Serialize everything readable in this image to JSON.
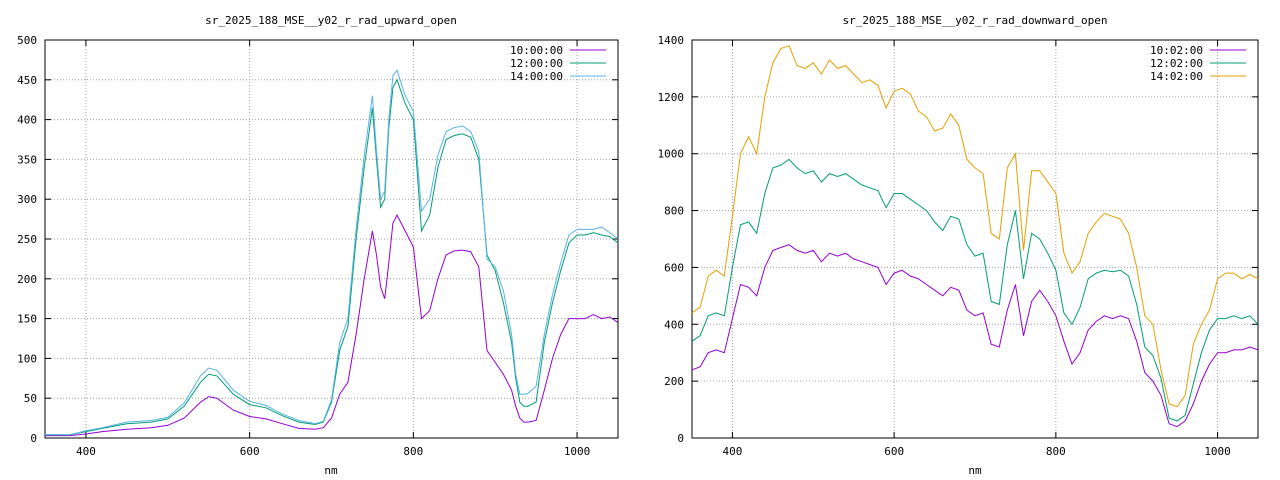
{
  "chart_data": [
    {
      "type": "line",
      "title": "sr_2025_188_MSE__y02_r_rad_upward_open",
      "xlabel": "nm",
      "ylabel": "",
      "xlim": [
        350,
        1050
      ],
      "ylim": [
        0,
        500
      ],
      "xticks": [
        400,
        600,
        800,
        1000
      ],
      "yticks": [
        0,
        50,
        100,
        150,
        200,
        250,
        300,
        350,
        400,
        450,
        500
      ],
      "grid": true,
      "legend_position": "top-right",
      "series": [
        {
          "name": "10:00:00",
          "color": "#9400d3",
          "x": [
            350,
            380,
            400,
            420,
            450,
            480,
            500,
            520,
            540,
            550,
            560,
            580,
            600,
            620,
            640,
            660,
            680,
            690,
            700,
            710,
            720,
            730,
            740,
            750,
            755,
            760,
            765,
            770,
            775,
            780,
            790,
            800,
            810,
            820,
            830,
            840,
            850,
            860,
            870,
            880,
            890,
            900,
            910,
            920,
            925,
            930,
            935,
            940,
            950,
            960,
            970,
            980,
            990,
            1000,
            1010,
            1020,
            1030,
            1040,
            1050
          ],
          "values": [
            3,
            3,
            5,
            8,
            11,
            13,
            16,
            25,
            45,
            52,
            50,
            35,
            27,
            24,
            18,
            12,
            11,
            13,
            25,
            55,
            70,
            130,
            200,
            260,
            230,
            190,
            175,
            220,
            270,
            280,
            260,
            240,
            150,
            160,
            200,
            230,
            235,
            236,
            234,
            215,
            110,
            95,
            80,
            60,
            40,
            25,
            20,
            20,
            22,
            60,
            100,
            130,
            150,
            150,
            150,
            155,
            150,
            152,
            145
          ]
        },
        {
          "name": "12:00:00",
          "color": "#009e73",
          "x": [
            350,
            380,
            400,
            420,
            450,
            480,
            500,
            520,
            540,
            550,
            560,
            580,
            600,
            620,
            640,
            660,
            680,
            690,
            700,
            710,
            720,
            730,
            740,
            750,
            755,
            760,
            765,
            770,
            775,
            780,
            790,
            800,
            810,
            820,
            830,
            840,
            850,
            860,
            870,
            880,
            890,
            900,
            910,
            920,
            925,
            930,
            935,
            940,
            950,
            960,
            970,
            980,
            990,
            1000,
            1010,
            1020,
            1030,
            1040,
            1050
          ],
          "values": [
            4,
            4,
            8,
            12,
            18,
            20,
            24,
            40,
            70,
            80,
            78,
            55,
            42,
            38,
            28,
            20,
            17,
            20,
            45,
            110,
            140,
            250,
            340,
            415,
            350,
            290,
            300,
            390,
            440,
            450,
            420,
            400,
            260,
            280,
            340,
            375,
            380,
            382,
            378,
            350,
            230,
            210,
            170,
            120,
            75,
            45,
            40,
            40,
            45,
            120,
            170,
            210,
            245,
            255,
            255,
            258,
            255,
            253,
            245
          ]
        },
        {
          "name": "14:00:00",
          "color": "#56b4e9",
          "x": [
            350,
            380,
            400,
            420,
            450,
            480,
            500,
            520,
            540,
            550,
            560,
            580,
            600,
            620,
            640,
            660,
            680,
            690,
            700,
            710,
            720,
            730,
            740,
            750,
            755,
            760,
            765,
            770,
            775,
            780,
            790,
            800,
            810,
            820,
            830,
            840,
            850,
            860,
            870,
            880,
            890,
            900,
            910,
            920,
            925,
            930,
            935,
            940,
            950,
            960,
            970,
            980,
            990,
            1000,
            1010,
            1020,
            1030,
            1040,
            1050
          ],
          "values": [
            4,
            4,
            9,
            13,
            20,
            22,
            26,
            44,
            78,
            88,
            85,
            60,
            46,
            41,
            30,
            22,
            18,
            21,
            48,
            120,
            150,
            262,
            355,
            430,
            360,
            300,
            310,
            400,
            455,
            462,
            430,
            410,
            285,
            300,
            355,
            385,
            390,
            392,
            385,
            360,
            225,
            215,
            185,
            130,
            80,
            55,
            55,
            56,
            65,
            130,
            180,
            220,
            255,
            262,
            262,
            262,
            265,
            258,
            250
          ]
        }
      ]
    },
    {
      "type": "line",
      "title": "sr_2025_188_MSE__y02_r_rad_downward_open",
      "xlabel": "nm",
      "ylabel": "",
      "xlim": [
        350,
        1050
      ],
      "ylim": [
        0,
        1400
      ],
      "xticks": [
        400,
        600,
        800,
        1000
      ],
      "yticks": [
        0,
        200,
        400,
        600,
        800,
        1000,
        1200,
        1400
      ],
      "grid": true,
      "legend_position": "top-right",
      "series": [
        {
          "name": "10:02:00",
          "color": "#9400d3",
          "x": [
            350,
            360,
            370,
            380,
            390,
            400,
            410,
            420,
            430,
            440,
            450,
            460,
            470,
            480,
            490,
            500,
            510,
            520,
            530,
            540,
            550,
            560,
            570,
            580,
            590,
            600,
            610,
            620,
            630,
            640,
            650,
            660,
            670,
            680,
            690,
            700,
            710,
            720,
            730,
            740,
            750,
            760,
            770,
            780,
            790,
            800,
            810,
            820,
            830,
            840,
            850,
            860,
            870,
            880,
            890,
            900,
            910,
            920,
            930,
            940,
            950,
            960,
            970,
            980,
            990,
            1000,
            1010,
            1020,
            1030,
            1040,
            1050
          ],
          "values": [
            240,
            250,
            300,
            310,
            300,
            420,
            540,
            530,
            500,
            600,
            660,
            670,
            680,
            660,
            650,
            660,
            620,
            650,
            640,
            650,
            630,
            620,
            610,
            600,
            540,
            580,
            590,
            570,
            560,
            540,
            520,
            500,
            530,
            520,
            450,
            430,
            440,
            330,
            320,
            450,
            540,
            360,
            480,
            520,
            480,
            430,
            340,
            260,
            300,
            380,
            410,
            430,
            420,
            430,
            420,
            340,
            230,
            200,
            150,
            50,
            40,
            60,
            120,
            200,
            260,
            300,
            300,
            310,
            310,
            320,
            310
          ]
        },
        {
          "name": "12:02:00",
          "color": "#009e73",
          "x": [
            350,
            360,
            370,
            380,
            390,
            400,
            410,
            420,
            430,
            440,
            450,
            460,
            470,
            480,
            490,
            500,
            510,
            520,
            530,
            540,
            550,
            560,
            570,
            580,
            590,
            600,
            610,
            620,
            630,
            640,
            650,
            660,
            670,
            680,
            690,
            700,
            710,
            720,
            730,
            740,
            750,
            760,
            770,
            780,
            790,
            800,
            810,
            820,
            830,
            840,
            850,
            860,
            870,
            880,
            890,
            900,
            910,
            920,
            930,
            940,
            950,
            960,
            970,
            980,
            990,
            1000,
            1010,
            1020,
            1030,
            1040,
            1050
          ],
          "values": [
            340,
            360,
            430,
            440,
            430,
            600,
            750,
            760,
            720,
            860,
            950,
            960,
            980,
            950,
            930,
            940,
            900,
            930,
            920,
            930,
            910,
            890,
            880,
            870,
            810,
            860,
            860,
            840,
            820,
            800,
            760,
            730,
            780,
            770,
            680,
            640,
            650,
            480,
            470,
            680,
            800,
            560,
            720,
            700,
            650,
            590,
            440,
            400,
            460,
            560,
            580,
            590,
            585,
            590,
            570,
            470,
            320,
            290,
            210,
            70,
            60,
            80,
            190,
            300,
            380,
            420,
            420,
            430,
            420,
            430,
            400
          ]
        },
        {
          "name": "14:02:00",
          "color": "#e69f00",
          "x": [
            350,
            360,
            370,
            380,
            390,
            400,
            410,
            420,
            430,
            440,
            450,
            460,
            470,
            480,
            490,
            500,
            510,
            520,
            530,
            540,
            550,
            560,
            570,
            580,
            590,
            600,
            610,
            620,
            630,
            640,
            650,
            660,
            670,
            680,
            690,
            700,
            710,
            720,
            730,
            740,
            750,
            760,
            770,
            780,
            790,
            800,
            810,
            820,
            830,
            840,
            850,
            860,
            870,
            880,
            890,
            900,
            910,
            920,
            930,
            940,
            950,
            960,
            970,
            980,
            990,
            1000,
            1010,
            1020,
            1030,
            1040,
            1050
          ],
          "values": [
            440,
            460,
            570,
            590,
            570,
            780,
            1000,
            1060,
            1000,
            1200,
            1320,
            1370,
            1380,
            1310,
            1300,
            1320,
            1280,
            1330,
            1300,
            1310,
            1280,
            1250,
            1260,
            1240,
            1160,
            1220,
            1230,
            1210,
            1150,
            1130,
            1080,
            1090,
            1140,
            1100,
            980,
            950,
            930,
            720,
            700,
            950,
            1000,
            660,
            940,
            940,
            900,
            860,
            650,
            580,
            620,
            720,
            760,
            790,
            780,
            770,
            720,
            600,
            430,
            400,
            240,
            120,
            110,
            150,
            330,
            400,
            450,
            560,
            580,
            580,
            560,
            575,
            560
          ]
        }
      ]
    }
  ]
}
